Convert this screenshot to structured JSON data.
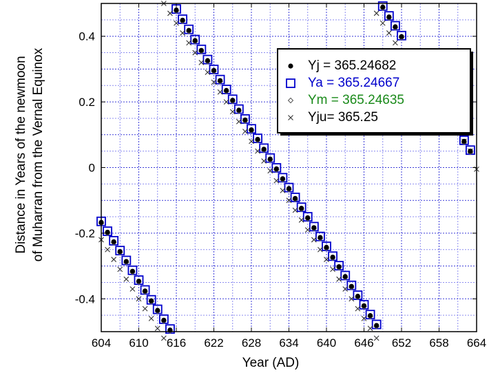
{
  "chart_data": {
    "type": "scatter",
    "title": "",
    "xlabel": "Year (AD)",
    "ylabel": [
      "Distance in Years of the newmoon",
      "of Muharran from the Vernal Equinox"
    ],
    "xlim": [
      604,
      664
    ],
    "ylim": [
      -0.5,
      0.5
    ],
    "xticks": [
      604,
      610,
      616,
      622,
      628,
      634,
      640,
      646,
      652,
      658,
      664
    ],
    "yticks": [
      -0.4,
      -0.2,
      0,
      0.2,
      0.4
    ],
    "ytick_labels": [
      "-0.4",
      "-0.2",
      "0",
      "0.2",
      "0.4"
    ],
    "grid": true,
    "legend_position": "top-right",
    "series": [
      {
        "name": "Yj = 365.24682",
        "marker": "filled-circle",
        "color": "#000000",
        "label_color": "#000000",
        "segments": [
          {
            "x": [
              604,
              605,
              606,
              607,
              608,
              609,
              610,
              611,
              612,
              613,
              614,
              615
            ],
            "y": [
              -0.167,
              -0.197,
              -0.226,
              -0.256,
              -0.286,
              -0.316,
              -0.346,
              -0.376,
              -0.406,
              -0.435,
              -0.465,
              -0.495
            ]
          },
          {
            "x": [
              616,
              617,
              618,
              619,
              620,
              621,
              622,
              623,
              624,
              625,
              626,
              627,
              628,
              629,
              630,
              631,
              632,
              633,
              634,
              635,
              636,
              637,
              638,
              639,
              640,
              641,
              642,
              643,
              644,
              645,
              646,
              647,
              648
            ],
            "y": [
              0.48,
              0.449,
              0.418,
              0.387,
              0.357,
              0.326,
              0.296,
              0.265,
              0.235,
              0.205,
              0.175,
              0.145,
              0.115,
              0.086,
              0.056,
              0.026,
              -0.004,
              -0.034,
              -0.064,
              -0.094,
              -0.124,
              -0.153,
              -0.183,
              -0.213,
              -0.243,
              -0.273,
              -0.302,
              -0.332,
              -0.362,
              -0.392,
              -0.421,
              -0.451,
              -0.481
            ]
          },
          {
            "x": [
              649,
              650,
              651,
              652
            ],
            "y": [
              0.489,
              0.459,
              0.429,
              0.399
            ]
          },
          {
            "x": [
              661,
              662,
              663
            ],
            "y": [
              0.11,
              0.08,
              0.05
            ]
          }
        ]
      },
      {
        "name": "Ya = 365.24667",
        "marker": "open-square",
        "color": "#0000cc",
        "label_color": "#0000cc",
        "segments": [
          {
            "x": [
              604,
              605,
              606,
              607,
              608,
              609,
              610,
              611,
              612,
              613,
              614,
              615
            ],
            "y": [
              -0.164,
              -0.194,
              -0.223,
              -0.253,
              -0.283,
              -0.313,
              -0.343,
              -0.373,
              -0.403,
              -0.432,
              -0.462,
              -0.492
            ]
          },
          {
            "x": [
              616,
              617,
              618,
              619,
              620,
              621,
              622,
              623,
              624,
              625,
              626,
              627,
              628,
              629,
              630,
              631,
              632,
              633,
              634,
              635,
              636,
              637,
              638,
              639,
              640,
              641,
              642,
              643,
              644,
              645,
              646,
              647,
              648
            ],
            "y": [
              0.483,
              0.452,
              0.421,
              0.39,
              0.36,
              0.329,
              0.299,
              0.268,
              0.238,
              0.208,
              0.178,
              0.148,
              0.118,
              0.089,
              0.059,
              0.029,
              -0.001,
              -0.031,
              -0.061,
              -0.091,
              -0.121,
              -0.15,
              -0.18,
              -0.21,
              -0.24,
              -0.27,
              -0.299,
              -0.329,
              -0.359,
              -0.389,
              -0.418,
              -0.448,
              -0.478
            ]
          },
          {
            "x": [
              649,
              650,
              651,
              652
            ],
            "y": [
              0.492,
              0.462,
              0.432,
              0.402
            ]
          },
          {
            "x": [
              661,
              662,
              663
            ],
            "y": [
              0.113,
              0.083,
              0.053
            ]
          }
        ]
      },
      {
        "name": "Ym = 365.24635",
        "marker": "open-diamond",
        "color": "#555555",
        "label_color": "#1a8a1a",
        "segments": [
          {
            "x": [
              604,
              605,
              606,
              607,
              608,
              609,
              610,
              611,
              612,
              613,
              614,
              615
            ],
            "y": [
              -0.17,
              -0.2,
              -0.229,
              -0.259,
              -0.289,
              -0.319,
              -0.349,
              -0.379,
              -0.409,
              -0.438,
              -0.468,
              -0.498
            ]
          },
          {
            "x": [
              616,
              617,
              618,
              619,
              620,
              621,
              622,
              623,
              624,
              625,
              626,
              627,
              628,
              629,
              630,
              631,
              632,
              633,
              634,
              635,
              636,
              637,
              638,
              639,
              640,
              641,
              642,
              643,
              644,
              645,
              646,
              647,
              648
            ],
            "y": [
              0.477,
              0.446,
              0.415,
              0.384,
              0.354,
              0.323,
              0.293,
              0.262,
              0.232,
              0.202,
              0.172,
              0.142,
              0.112,
              0.083,
              0.053,
              0.023,
              -0.007,
              -0.037,
              -0.067,
              -0.097,
              -0.127,
              -0.156,
              -0.186,
              -0.216,
              -0.246,
              -0.276,
              -0.305,
              -0.335,
              -0.365,
              -0.395,
              -0.424,
              -0.454,
              -0.484
            ]
          },
          {
            "x": [
              649,
              650,
              651,
              652
            ],
            "y": [
              0.486,
              0.456,
              0.426,
              0.396
            ]
          },
          {
            "x": [
              661,
              662,
              663
            ],
            "y": [
              0.107,
              0.077,
              0.047
            ]
          }
        ]
      },
      {
        "name": "Yju= 365.25",
        "marker": "x",
        "color": "#333333",
        "label_color": "#000000",
        "segments": [
          {
            "x": [
              604,
              605,
              606,
              607,
              608,
              609,
              610,
              611,
              612,
              613,
              614,
              615
            ],
            "y": [
              -0.22,
              -0.25,
              -0.28,
              -0.31,
              -0.34,
              -0.37,
              -0.4,
              -0.43,
              -0.46,
              -0.49,
              -0.52,
              -0.55
            ]
          },
          {
            "x": [
              614,
              615,
              616,
              617,
              618,
              619,
              620,
              621,
              622,
              623,
              624,
              625,
              626,
              627,
              628,
              629,
              630,
              631,
              632,
              633,
              634,
              635,
              636,
              637,
              638,
              639,
              640,
              641,
              642,
              643,
              644,
              645,
              646,
              647,
              648
            ],
            "y": [
              0.5,
              0.47,
              0.44,
              0.41,
              0.38,
              0.35,
              0.32,
              0.29,
              0.26,
              0.23,
              0.2,
              0.17,
              0.14,
              0.11,
              0.08,
              0.05,
              0.02,
              -0.01,
              -0.04,
              -0.07,
              -0.1,
              -0.13,
              -0.16,
              -0.19,
              -0.22,
              -0.25,
              -0.28,
              -0.31,
              -0.34,
              -0.37,
              -0.4,
              -0.43,
              -0.46,
              -0.49,
              -0.52
            ]
          },
          {
            "x": [
              648,
              649,
              650,
              651,
              652
            ],
            "y": [
              0.47,
              0.44,
              0.41,
              0.38,
              0.35
            ]
          },
          {
            "x": [
              660,
              661,
              662,
              663
            ],
            "y": [
              0.14,
              0.11,
              0.08,
              0.05
            ]
          },
          {
            "x": [
              664
            ],
            "y": [
              -0.005
            ]
          }
        ]
      }
    ]
  }
}
